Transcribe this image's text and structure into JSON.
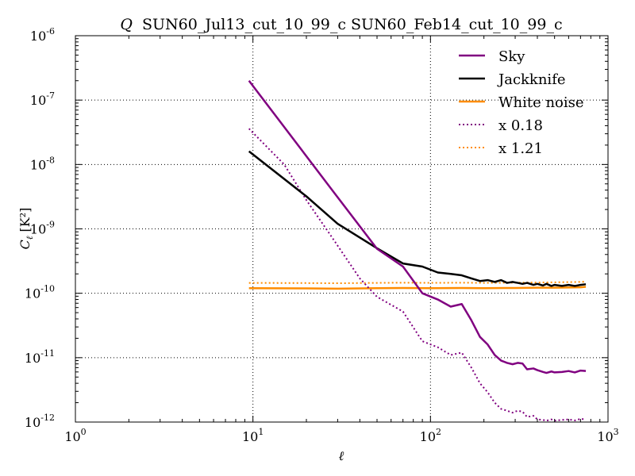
{
  "chart_data": {
    "type": "line",
    "title_prefix": "Q",
    "title": "SUN60_Jul13_cut_10_99_c SUN60_Feb14_cut_10_99_c",
    "xlabel": "ℓ",
    "ylabel": "C",
    "ylabel_sub": "ℓ",
    "ylabel_unit": "[K²]",
    "xscale": "log",
    "yscale": "log",
    "xlim": [
      1,
      1000
    ],
    "ylim": [
      1e-12,
      1e-06
    ],
    "x_ticks": [
      {
        "value": 1,
        "base": "10",
        "exp": "0"
      },
      {
        "value": 10,
        "base": "10",
        "exp": "1"
      },
      {
        "value": 100,
        "base": "10",
        "exp": "2"
      },
      {
        "value": 1000,
        "base": "10",
        "exp": "3"
      }
    ],
    "y_ticks": [
      {
        "value": 1e-12,
        "base": "10",
        "exp": "-12"
      },
      {
        "value": 1e-11,
        "base": "10",
        "exp": "-11"
      },
      {
        "value": 1e-10,
        "base": "10",
        "exp": "-10"
      },
      {
        "value": 1e-09,
        "base": "10",
        "exp": "-9"
      },
      {
        "value": 1e-08,
        "base": "10",
        "exp": "-8"
      },
      {
        "value": 1e-07,
        "base": "10",
        "exp": "-7"
      },
      {
        "value": 1e-06,
        "base": "10",
        "exp": "-6"
      }
    ],
    "grid": true,
    "legend_position": "top-right",
    "series": [
      {
        "name": "Sky",
        "color": "#800080",
        "style": "solid",
        "x": [
          9.5,
          29,
          50,
          70,
          90,
          110,
          130,
          150,
          170,
          190,
          210,
          230,
          250,
          270,
          290,
          310,
          330,
          350,
          380,
          400,
          430,
          450,
          480,
          500,
          550,
          600,
          650,
          700,
          750
        ],
        "y": [
          2e-07,
          3.5e-09,
          4.9e-10,
          2.6e-10,
          1e-10,
          8e-11,
          6.2e-11,
          6.8e-11,
          3.8e-11,
          2.1e-11,
          1.6e-11,
          1.1e-11,
          9e-12,
          8.3e-12,
          7.9e-12,
          8.3e-12,
          8.1e-12,
          6.6e-12,
          6.8e-12,
          6.4e-12,
          6e-12,
          5.8e-12,
          6.1e-12,
          5.9e-12,
          6e-12,
          6.2e-12,
          5.9e-12,
          6.3e-12,
          6.2e-12
        ]
      },
      {
        "name": "Jackknife",
        "color": "#000000",
        "style": "solid",
        "x": [
          9.5,
          20,
          30,
          50,
          70,
          90,
          110,
          130,
          150,
          170,
          190,
          210,
          230,
          250,
          270,
          290,
          310,
          330,
          350,
          380,
          400,
          430,
          450,
          480,
          500,
          550,
          600,
          650,
          700,
          750
        ],
        "y": [
          1.6e-08,
          3.2e-09,
          1.2e-09,
          5e-10,
          2.9e-10,
          2.6e-10,
          2.1e-10,
          2e-10,
          1.9e-10,
          1.7e-10,
          1.55e-10,
          1.6e-10,
          1.5e-10,
          1.6e-10,
          1.45e-10,
          1.5e-10,
          1.45e-10,
          1.4e-10,
          1.45e-10,
          1.35e-10,
          1.4e-10,
          1.32e-10,
          1.4e-10,
          1.3e-10,
          1.35e-10,
          1.3e-10,
          1.35e-10,
          1.3e-10,
          1.35e-10,
          1.38e-10
        ]
      },
      {
        "name": "White noise",
        "color": "#ff8c00",
        "style": "solid",
        "x": [
          9.5,
          20,
          30,
          50,
          70,
          100,
          150,
          200,
          300,
          400,
          500,
          600,
          700,
          750
        ],
        "y": [
          1.2e-10,
          1.19e-10,
          1.18e-10,
          1.2e-10,
          1.21e-10,
          1.2e-10,
          1.21e-10,
          1.2e-10,
          1.21e-10,
          1.22e-10,
          1.22e-10,
          1.23e-10,
          1.24e-10,
          1.26e-10
        ]
      },
      {
        "name": "x 0.18",
        "color": "#800080",
        "style": "dotted",
        "x": [
          9.5,
          15,
          20,
          29,
          40,
          50,
          70,
          90,
          110,
          130,
          150,
          170,
          190,
          210,
          230,
          250,
          270,
          290,
          310,
          330,
          350,
          380,
          400,
          430,
          450,
          480,
          500,
          550,
          600,
          650,
          700,
          750
        ],
        "y": [
          3.6e-08,
          1e-08,
          2.8e-09,
          6.3e-10,
          1.7e-10,
          8.8e-11,
          5.2e-11,
          1.8e-11,
          1.45e-11,
          1.1e-11,
          1.2e-11,
          7e-12,
          4e-12,
          2.9e-12,
          2e-12,
          1.6e-12,
          1.5e-12,
          1.4e-12,
          1.5e-12,
          1.45e-12,
          1.2e-12,
          1.25e-12,
          1.1e-12,
          1.08e-12,
          1.05e-12,
          1.1e-12,
          1.05e-12,
          1.08e-12,
          1.1e-12,
          1.06e-12,
          1.12e-12,
          1.1e-12
        ]
      },
      {
        "name": "x 1.21",
        "color": "#ff8c00",
        "style": "dotted",
        "x": [
          9.5,
          20,
          30,
          50,
          70,
          100,
          150,
          200,
          300,
          400,
          500,
          600,
          700,
          750
        ],
        "y": [
          1.45e-10,
          1.44e-10,
          1.43e-10,
          1.45e-10,
          1.46e-10,
          1.45e-10,
          1.46e-10,
          1.45e-10,
          1.46e-10,
          1.47e-10,
          1.48e-10,
          1.49e-10,
          1.5e-10,
          1.52e-10
        ]
      }
    ]
  }
}
